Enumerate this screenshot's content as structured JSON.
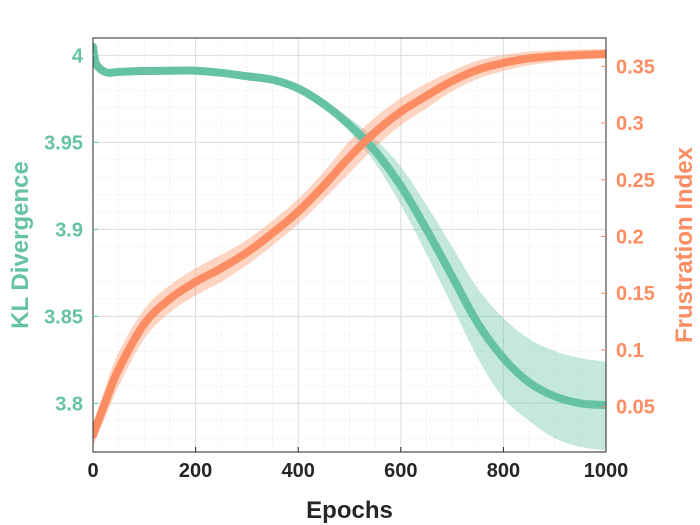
{
  "chart_data": {
    "type": "line",
    "xlabel": "Epochs",
    "x_ticks": [
      "0",
      "200",
      "400",
      "600",
      "800",
      "1000"
    ],
    "xlim": [
      0,
      1000
    ],
    "grid": true,
    "minor_grid": true,
    "left_axis": {
      "label": "KL Divergence",
      "color": "#66c2a5",
      "ylim": [
        3.772,
        4.01
      ],
      "ticks": [
        "3.8",
        "3.85",
        "3.9",
        "3.95",
        "4"
      ]
    },
    "right_axis": {
      "label": "Frustration Index",
      "color": "#fc8d62",
      "ylim": [
        0.01,
        0.375
      ],
      "ticks": [
        "0.05",
        "0.1",
        "0.15",
        "0.2",
        "0.25",
        "0.3",
        "0.35"
      ]
    },
    "series": [
      {
        "name": "KL Divergence",
        "axis": "left",
        "color": "#66c2a5",
        "x": [
          0,
          5,
          15,
          30,
          50,
          100,
          150,
          200,
          250,
          300,
          350,
          400,
          450,
          500,
          550,
          600,
          650,
          700,
          750,
          800,
          850,
          900,
          950,
          1000
        ],
        "y": [
          4.005,
          3.996,
          3.992,
          3.99,
          3.9905,
          3.991,
          3.9912,
          3.9912,
          3.99,
          3.988,
          3.986,
          3.981,
          3.972,
          3.96,
          3.945,
          3.925,
          3.9,
          3.873,
          3.846,
          3.826,
          3.812,
          3.804,
          3.8,
          3.799
        ],
        "lower": [
          4.003,
          3.995,
          3.991,
          3.989,
          3.9895,
          3.99,
          3.9902,
          3.9902,
          3.989,
          3.987,
          3.985,
          3.98,
          3.97,
          3.956,
          3.938,
          3.914,
          3.886,
          3.856,
          3.826,
          3.803,
          3.79,
          3.78,
          3.775,
          3.773
        ],
        "upper": [
          4.007,
          3.997,
          3.993,
          3.991,
          3.9915,
          3.992,
          3.9922,
          3.9922,
          3.991,
          3.989,
          3.987,
          3.982,
          3.974,
          3.964,
          3.952,
          3.936,
          3.914,
          3.89,
          3.866,
          3.849,
          3.837,
          3.83,
          3.826,
          3.824
        ]
      },
      {
        "name": "Frustration Index",
        "axis": "right",
        "color": "#fc8d62",
        "x": [
          0,
          10,
          25,
          50,
          100,
          150,
          200,
          250,
          300,
          350,
          400,
          450,
          500,
          550,
          600,
          650,
          700,
          750,
          800,
          850,
          900,
          950,
          1000
        ],
        "y": [
          0.025,
          0.037,
          0.055,
          0.083,
          0.123,
          0.145,
          0.16,
          0.172,
          0.186,
          0.203,
          0.222,
          0.245,
          0.27,
          0.292,
          0.31,
          0.324,
          0.337,
          0.347,
          0.353,
          0.357,
          0.359,
          0.36,
          0.361
        ],
        "lower": [
          0.015,
          0.026,
          0.042,
          0.068,
          0.11,
          0.133,
          0.148,
          0.16,
          0.175,
          0.192,
          0.211,
          0.233,
          0.256,
          0.279,
          0.298,
          0.313,
          0.328,
          0.339,
          0.346,
          0.351,
          0.354,
          0.356,
          0.357
        ],
        "upper": [
          0.035,
          0.048,
          0.068,
          0.098,
          0.136,
          0.157,
          0.172,
          0.184,
          0.197,
          0.214,
          0.233,
          0.257,
          0.284,
          0.305,
          0.322,
          0.335,
          0.346,
          0.355,
          0.36,
          0.363,
          0.364,
          0.365,
          0.365
        ]
      }
    ]
  }
}
